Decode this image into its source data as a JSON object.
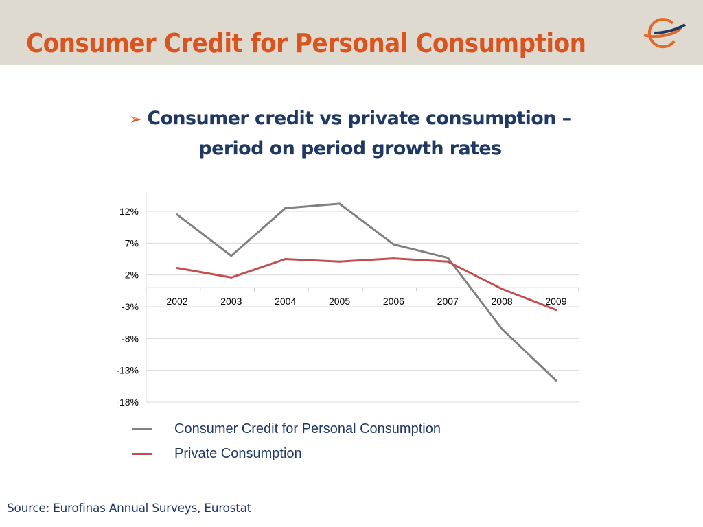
{
  "header": {
    "title": "Consumer Credit for Personal Consumption",
    "logo": "eurofinas-globe-logo"
  },
  "subtitle": {
    "bullet_icon": "arrow-bullet-icon",
    "line1": "Consumer credit vs private consumption  –",
    "line2": "period on period growth rates"
  },
  "chart_data": {
    "type": "line",
    "categories": [
      "2002",
      "2003",
      "2004",
      "2005",
      "2006",
      "2007",
      "2008",
      "2009"
    ],
    "y_ticks": [
      "12%",
      "7%",
      "2%",
      "-3%",
      "-8%",
      "-13%",
      "-18%"
    ],
    "y_tick_values": [
      12,
      7,
      2,
      -3,
      -8,
      -13,
      -18
    ],
    "ylim": [
      -18,
      15
    ],
    "grid": true,
    "legend": "bottom",
    "series": [
      {
        "name": "Consumer Credit for Personal Consumption",
        "color": "#808080",
        "values": [
          11.5,
          5.0,
          12.5,
          13.2,
          6.8,
          4.7,
          -6.5,
          -14.6
        ]
      },
      {
        "name": "Private Consumption",
        "color": "#c0504d",
        "values": [
          3.1,
          1.6,
          4.5,
          4.1,
          4.6,
          4.1,
          -0.2,
          -3.5
        ]
      }
    ]
  },
  "source": "Source: Eurofinas Annual Surveys, Eurostat",
  "colors": {
    "title": "#d9541e",
    "text": "#1f3864",
    "header_bg": "#dedad0"
  }
}
